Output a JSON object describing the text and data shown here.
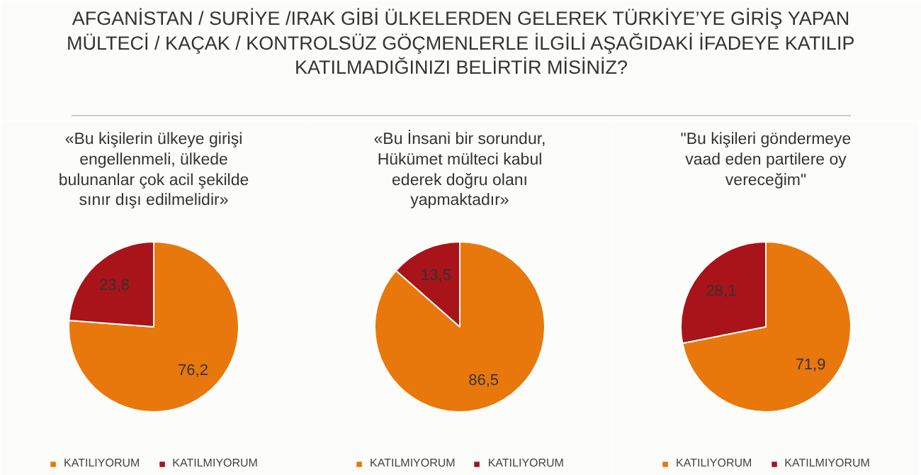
{
  "chart_data": [
    {
      "type": "other",
      "title": "AFGANİSTAN / SURİYE /IRAK GİBİ ÜLKELERDEN GELEREK TÜRKİYE’YE GİRİŞ YAPAN\nMÜLTECİ / KAÇAK / KONTROLSÜZ GÖÇMENLERLE İLGİLİ AŞAĞIDAKİ İFADEYE KATILIP\nKATILMADIĞINIZI BELİRTİR MİSİNİZ?"
    },
    {
      "type": "pie",
      "subtitle": "«Bu kişilerin ülkeye girişi\nengellenmeli, ülkede\nbulunanlar çok acil şekilde\nsınır dışı edilmelidir»",
      "categories": [
        "KATILIYORUM",
        "KATILMIYORUM"
      ],
      "values": [
        76.2,
        23.8
      ],
      "colors": [
        "#e8780c",
        "#a81419"
      ],
      "value_labels": [
        "76,2",
        "23,8"
      ],
      "legend": "bottom"
    },
    {
      "type": "pie",
      "subtitle": "«Bu İnsani bir sorundur,\nHükümet mülteci kabul\nederek doğru olanı\nyapmaktadır»",
      "categories": [
        "KATILMIYORUM",
        "KATILIYORUM"
      ],
      "values": [
        86.5,
        13.5
      ],
      "colors": [
        "#e8780c",
        "#a81419"
      ],
      "value_labels": [
        "86,5",
        "13,5"
      ],
      "legend": "bottom"
    },
    {
      "type": "pie",
      "subtitle": "\"Bu kişileri göndermeye\nvaad eden partilere oy\nvereceğim\"",
      "categories": [
        "KATILIYORUM",
        "KATILMIYORUM"
      ],
      "values": [
        71.9,
        28.1
      ],
      "colors": [
        "#e8780c",
        "#a81419"
      ],
      "value_labels": [
        "71,9",
        "28,1"
      ],
      "legend": "bottom"
    }
  ]
}
